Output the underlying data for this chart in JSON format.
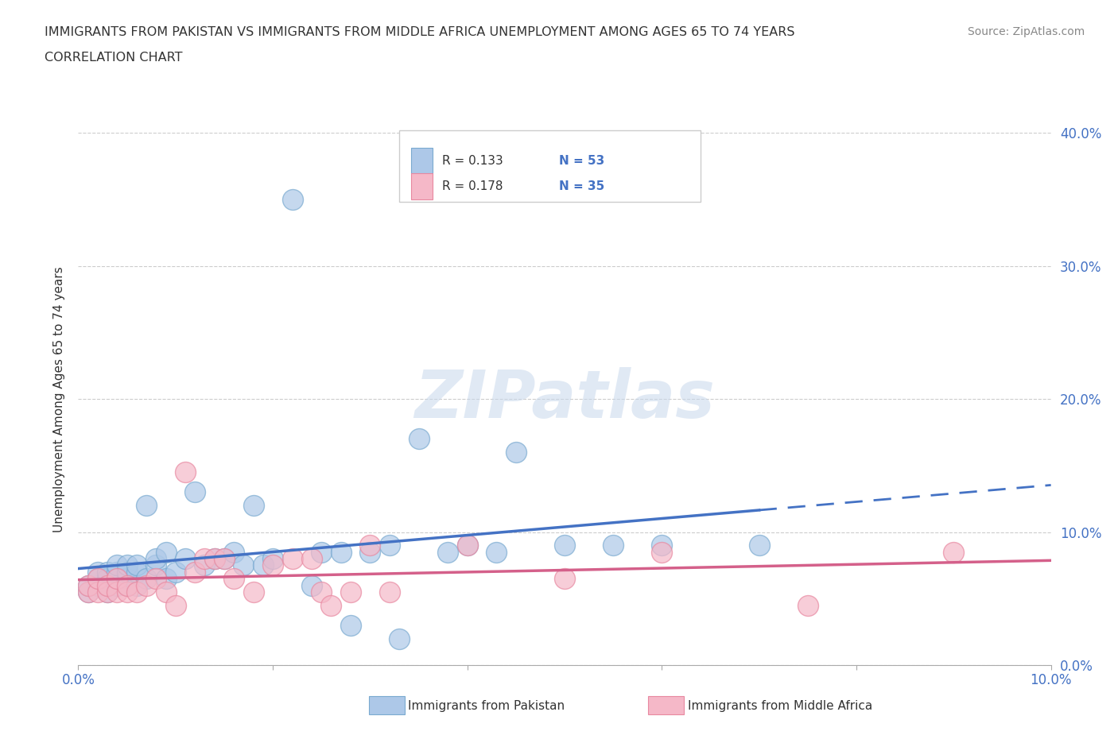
{
  "title_line1": "IMMIGRANTS FROM PAKISTAN VS IMMIGRANTS FROM MIDDLE AFRICA UNEMPLOYMENT AMONG AGES 65 TO 74 YEARS",
  "title_line2": "CORRELATION CHART",
  "source": "Source: ZipAtlas.com",
  "ylabel": "Unemployment Among Ages 65 to 74 years",
  "xlim": [
    0,
    0.1
  ],
  "ylim": [
    0,
    0.4
  ],
  "pakistan_R": 0.133,
  "pakistan_N": 53,
  "middleafrica_R": 0.178,
  "middleafrica_N": 35,
  "legend_label_pakistan": "Immigrants from Pakistan",
  "legend_label_africa": "Immigrants from Middle Africa",
  "pakistan_color": "#adc8e8",
  "pakistan_edge_color": "#7aaad0",
  "pakistan_line_color": "#4472c4",
  "africa_color": "#f5b8c8",
  "africa_edge_color": "#e888a0",
  "africa_line_color": "#d4608a",
  "tick_label_color": "#4472c4",
  "grid_color": "#cccccc",
  "watermark": "ZIPatlas",
  "pakistan_x": [
    0.001,
    0.001,
    0.002,
    0.002,
    0.002,
    0.003,
    0.003,
    0.003,
    0.003,
    0.004,
    0.004,
    0.004,
    0.005,
    0.005,
    0.005,
    0.005,
    0.006,
    0.006,
    0.006,
    0.007,
    0.007,
    0.008,
    0.008,
    0.009,
    0.009,
    0.01,
    0.011,
    0.012,
    0.013,
    0.014,
    0.015,
    0.016,
    0.017,
    0.018,
    0.019,
    0.02,
    0.022,
    0.024,
    0.025,
    0.027,
    0.028,
    0.03,
    0.032,
    0.033,
    0.035,
    0.038,
    0.04,
    0.043,
    0.045,
    0.05,
    0.055,
    0.06,
    0.07
  ],
  "pakistan_y": [
    0.055,
    0.06,
    0.06,
    0.065,
    0.07,
    0.055,
    0.06,
    0.065,
    0.07,
    0.06,
    0.07,
    0.075,
    0.06,
    0.065,
    0.07,
    0.075,
    0.06,
    0.07,
    0.075,
    0.065,
    0.12,
    0.075,
    0.08,
    0.065,
    0.085,
    0.07,
    0.08,
    0.13,
    0.075,
    0.08,
    0.08,
    0.085,
    0.075,
    0.12,
    0.075,
    0.08,
    0.35,
    0.06,
    0.085,
    0.085,
    0.03,
    0.085,
    0.09,
    0.02,
    0.17,
    0.085,
    0.09,
    0.085,
    0.16,
    0.09,
    0.09,
    0.09,
    0.09
  ],
  "africa_x": [
    0.001,
    0.001,
    0.002,
    0.002,
    0.003,
    0.003,
    0.004,
    0.004,
    0.005,
    0.005,
    0.006,
    0.007,
    0.008,
    0.009,
    0.01,
    0.011,
    0.012,
    0.013,
    0.014,
    0.015,
    0.016,
    0.018,
    0.02,
    0.022,
    0.024,
    0.025,
    0.026,
    0.028,
    0.03,
    0.032,
    0.04,
    0.05,
    0.06,
    0.075,
    0.09
  ],
  "africa_y": [
    0.055,
    0.06,
    0.055,
    0.065,
    0.055,
    0.06,
    0.055,
    0.065,
    0.055,
    0.06,
    0.055,
    0.06,
    0.065,
    0.055,
    0.045,
    0.145,
    0.07,
    0.08,
    0.08,
    0.08,
    0.065,
    0.055,
    0.075,
    0.08,
    0.08,
    0.055,
    0.045,
    0.055,
    0.09,
    0.055,
    0.09,
    0.065,
    0.085,
    0.045,
    0.085
  ]
}
